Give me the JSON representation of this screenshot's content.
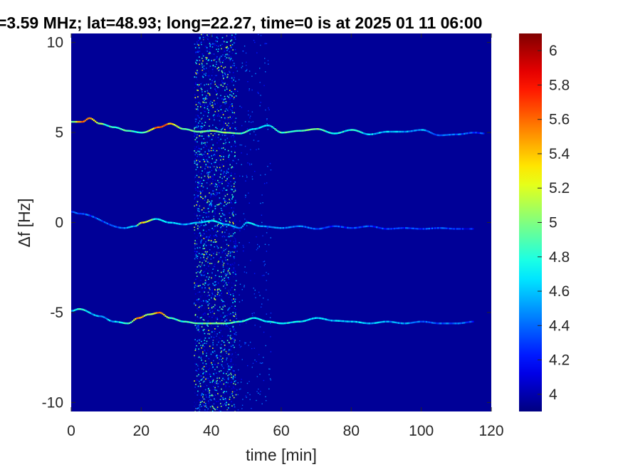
{
  "chart_data": {
    "type": "heatmap",
    "title": "=3.59 MHz;  lat=48.93; long=22.27, time=0 is at 2025 01 11 06:00",
    "xlabel": "time [min]",
    "ylabel": "Δf [Hz]",
    "xlim": [
      0,
      120
    ],
    "ylim": [
      -10.5,
      10.5
    ],
    "x_ticks": [
      {
        "value": 0,
        "label": "0"
      },
      {
        "value": 20,
        "label": "20"
      },
      {
        "value": 40,
        "label": "40"
      },
      {
        "value": 60,
        "label": "60"
      },
      {
        "value": 80,
        "label": "80"
      },
      {
        "value": 100,
        "label": "100"
      },
      {
        "value": 120,
        "label": "120"
      }
    ],
    "y_ticks": [
      {
        "value": 10,
        "label": "10"
      },
      {
        "value": 5,
        "label": "5"
      },
      {
        "value": 0,
        "label": "0"
      },
      {
        "value": -5,
        "label": "-5"
      },
      {
        "value": -10,
        "label": "-10"
      }
    ],
    "colorbar": {
      "range": [
        3.9,
        6.1
      ],
      "colormap": "jet",
      "ticks": [
        {
          "value": 6,
          "label": "6"
        },
        {
          "value": 5.8,
          "label": "5.8"
        },
        {
          "value": 5.6,
          "label": "5.6"
        },
        {
          "value": 5.4,
          "label": "5.4"
        },
        {
          "value": 5.2,
          "label": "5.2"
        },
        {
          "value": 5,
          "label": "5"
        },
        {
          "value": 4.8,
          "label": "4.8"
        },
        {
          "value": 4.6,
          "label": "4.6"
        },
        {
          "value": 4.4,
          "label": "4.4"
        },
        {
          "value": 4.2,
          "label": "4.2"
        },
        {
          "value": 4,
          "label": "4"
        }
      ]
    },
    "background_value": 3.95,
    "noise_band": {
      "x_range": [
        35,
        47
      ],
      "intensity_range": [
        4.0,
        5.3
      ]
    },
    "series": [
      {
        "x": [
          0,
          3,
          5,
          8,
          12,
          16,
          20,
          25,
          28,
          32,
          36,
          40,
          44,
          48,
          52,
          56,
          60,
          65,
          70,
          75,
          80,
          85,
          90,
          95,
          100,
          105,
          110,
          115,
          118
        ],
        "y": [
          5.6,
          5.6,
          5.8,
          5.5,
          5.3,
          5.1,
          5.0,
          5.3,
          5.5,
          5.2,
          5.05,
          5.1,
          5.0,
          4.95,
          5.2,
          5.4,
          5.0,
          5.1,
          5.2,
          4.95,
          5.15,
          4.9,
          5.05,
          5.05,
          5.15,
          4.85,
          4.9,
          5.0,
          4.95
        ],
        "intensity": [
          4.9,
          5.7,
          5.5,
          5.0,
          4.8,
          4.9,
          4.8,
          5.7,
          5.4,
          4.9,
          4.9,
          5.0,
          5.0,
          4.9,
          4.7,
          4.6,
          4.9,
          4.9,
          5.0,
          4.7,
          4.8,
          4.6,
          4.6,
          4.5,
          4.5,
          4.4,
          4.4,
          4.3,
          4.3
        ]
      },
      {
        "x": [
          0,
          2,
          15,
          18,
          20,
          24,
          28,
          32,
          36,
          40,
          44,
          48,
          50,
          54,
          60,
          65,
          70,
          75,
          80,
          85,
          90,
          95,
          100,
          105,
          110,
          115
        ],
        "y": [
          0.6,
          0.5,
          -0.3,
          -0.2,
          0.0,
          0.2,
          0.0,
          -0.1,
          0.0,
          0.1,
          -0.1,
          -0.3,
          0.0,
          -0.2,
          -0.3,
          -0.2,
          -0.35,
          -0.2,
          -0.3,
          -0.2,
          -0.35,
          -0.3,
          -0.35,
          -0.3,
          -0.35,
          -0.35
        ],
        "intensity": [
          4.4,
          4.3,
          4.4,
          4.6,
          5.4,
          4.7,
          4.6,
          4.5,
          4.6,
          4.7,
          4.6,
          4.5,
          4.7,
          4.5,
          4.4,
          4.4,
          4.4,
          4.3,
          4.3,
          4.3,
          4.3,
          4.3,
          4.3,
          4.3,
          4.2,
          4.2
        ]
      },
      {
        "x": [
          0,
          2,
          8,
          12,
          16,
          19,
          22,
          25,
          28,
          32,
          36,
          40,
          44,
          48,
          52,
          56,
          60,
          65,
          70,
          75,
          80,
          85,
          90,
          95,
          100,
          105,
          110,
          115
        ],
        "y": [
          -4.9,
          -4.8,
          -5.2,
          -5.5,
          -5.6,
          -5.3,
          -5.1,
          -5.0,
          -5.3,
          -5.5,
          -5.6,
          -5.6,
          -5.6,
          -5.5,
          -5.3,
          -5.5,
          -5.6,
          -5.5,
          -5.3,
          -5.45,
          -5.5,
          -5.6,
          -5.5,
          -5.6,
          -5.5,
          -5.6,
          -5.6,
          -5.5
        ],
        "intensity": [
          4.6,
          4.8,
          4.5,
          4.6,
          4.8,
          5.5,
          5.0,
          5.6,
          4.9,
          4.8,
          4.9,
          5.0,
          4.9,
          4.8,
          4.7,
          4.7,
          4.7,
          4.8,
          4.6,
          4.6,
          4.6,
          4.6,
          4.5,
          4.5,
          4.4,
          4.4,
          4.4,
          4.3
        ]
      }
    ]
  }
}
